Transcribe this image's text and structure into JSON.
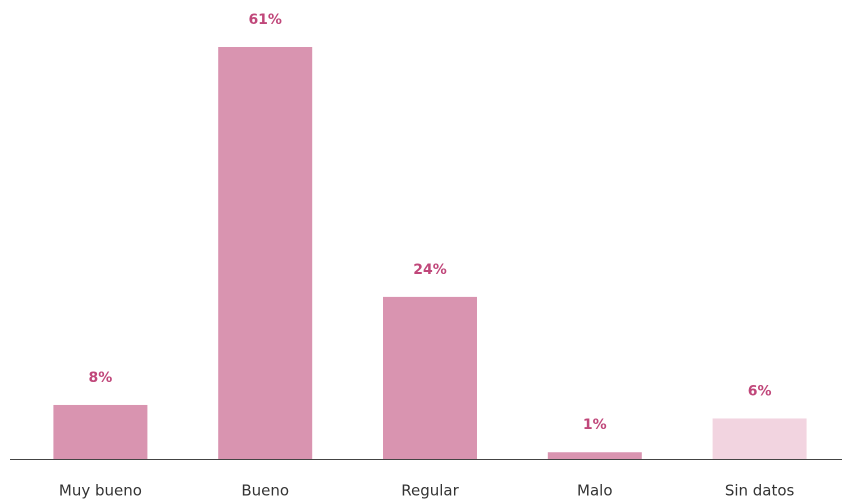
{
  "chart_data": {
    "type": "bar",
    "categories": [
      "Muy bueno",
      "Bueno",
      "Regular",
      "Malo",
      "Sin datos"
    ],
    "values": [
      8,
      61,
      24,
      1,
      6
    ],
    "value_labels": [
      "8%",
      "61%",
      "24%",
      "1%",
      "6%"
    ],
    "colors": [
      "#d994b0",
      "#d994b0",
      "#d994b0",
      "#d994b0",
      "#f2d4e0"
    ],
    "label_color": "#c0477a"
  }
}
